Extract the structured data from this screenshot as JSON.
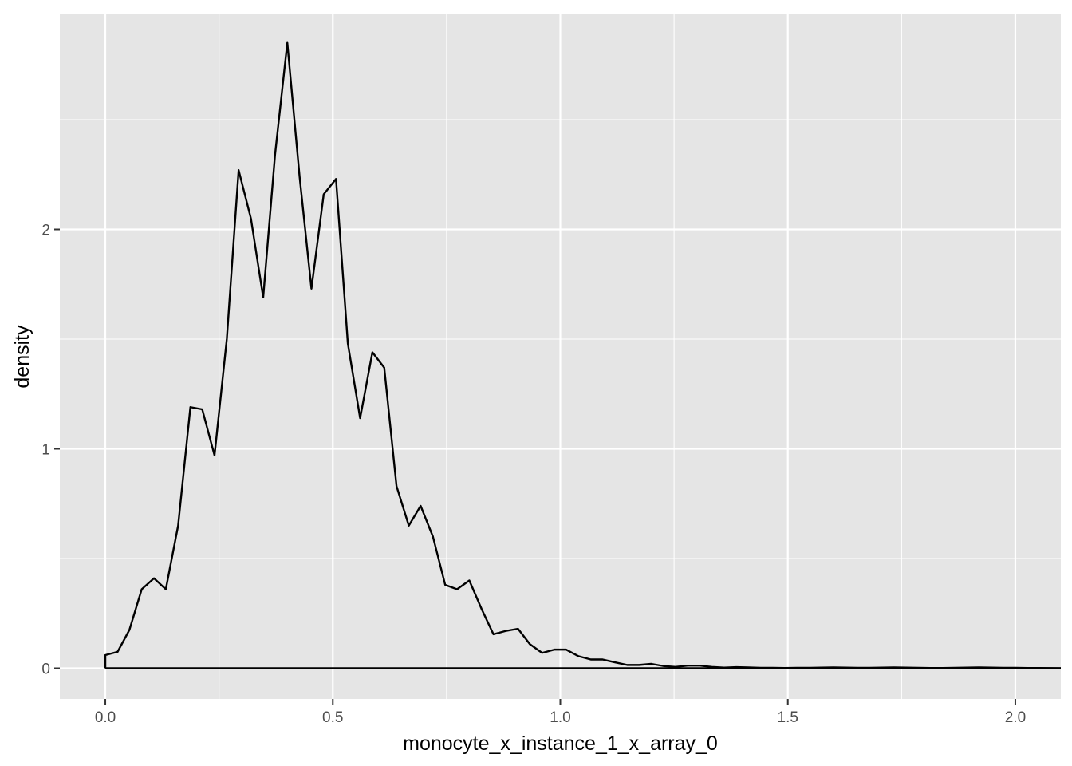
{
  "chart_data": {
    "type": "line",
    "subtype": "density",
    "title": "",
    "xlabel": "monocyte_x_instance_1_x_array_0",
    "ylabel": "density",
    "xlim": [
      -0.1,
      2.1
    ],
    "ylim": [
      -0.14,
      2.98
    ],
    "x_ticks": [
      0.0,
      0.5,
      1.0,
      1.5,
      2.0
    ],
    "x_tick_labels": [
      "0.0",
      "0.5",
      "1.0",
      "1.5",
      "2.0"
    ],
    "y_ticks": [
      0,
      1,
      2
    ],
    "y_tick_labels": [
      "0",
      "1",
      "2"
    ],
    "grid": true,
    "legend": "none",
    "colors": {
      "panel_background": "#e5e5e5",
      "grid": "#ffffff",
      "line": "#000000",
      "tick_text": "#4d4d4d"
    },
    "x": [
      0.0,
      0.027,
      0.053,
      0.08,
      0.107,
      0.133,
      0.16,
      0.187,
      0.213,
      0.24,
      0.267,
      0.293,
      0.32,
      0.347,
      0.373,
      0.4,
      0.427,
      0.453,
      0.48,
      0.507,
      0.533,
      0.56,
      0.587,
      0.613,
      0.64,
      0.667,
      0.693,
      0.72,
      0.747,
      0.773,
      0.8,
      0.827,
      0.853,
      0.88,
      0.907,
      0.933,
      0.96,
      0.987,
      1.013,
      1.04,
      1.067,
      1.093,
      1.12,
      1.147,
      1.173,
      1.2,
      1.227,
      1.253,
      1.28,
      1.307,
      1.333,
      1.36,
      1.387,
      1.413,
      1.44,
      1.467,
      1.493,
      1.52,
      1.547,
      1.573,
      1.6,
      1.627,
      1.653,
      1.68,
      1.707,
      1.733,
      1.76,
      1.787,
      1.813,
      1.84,
      1.867,
      1.893,
      1.92,
      1.947,
      1.973,
      2.0,
      2.027,
      2.053,
      2.1
    ],
    "y": [
      0.06,
      0.075,
      0.175,
      0.36,
      0.41,
      0.36,
      0.65,
      1.19,
      1.18,
      0.97,
      1.5,
      2.27,
      2.05,
      1.69,
      2.34,
      2.85,
      2.24,
      1.73,
      2.16,
      2.23,
      1.48,
      1.14,
      1.44,
      1.37,
      0.83,
      0.65,
      0.74,
      0.6,
      0.38,
      0.36,
      0.4,
      0.27,
      0.155,
      0.17,
      0.18,
      0.11,
      0.07,
      0.085,
      0.085,
      0.055,
      0.04,
      0.04,
      0.027,
      0.015,
      0.015,
      0.02,
      0.01,
      0.006,
      0.012,
      0.012,
      0.006,
      0.003,
      0.005,
      0.004,
      0.002,
      0.002,
      0.001,
      0.002,
      0.002,
      0.003,
      0.004,
      0.003,
      0.002,
      0.002,
      0.003,
      0.004,
      0.003,
      0.002,
      0.001,
      0.001,
      0.002,
      0.003,
      0.004,
      0.003,
      0.002,
      0.002,
      0.001,
      0.001,
      0.0
    ]
  }
}
